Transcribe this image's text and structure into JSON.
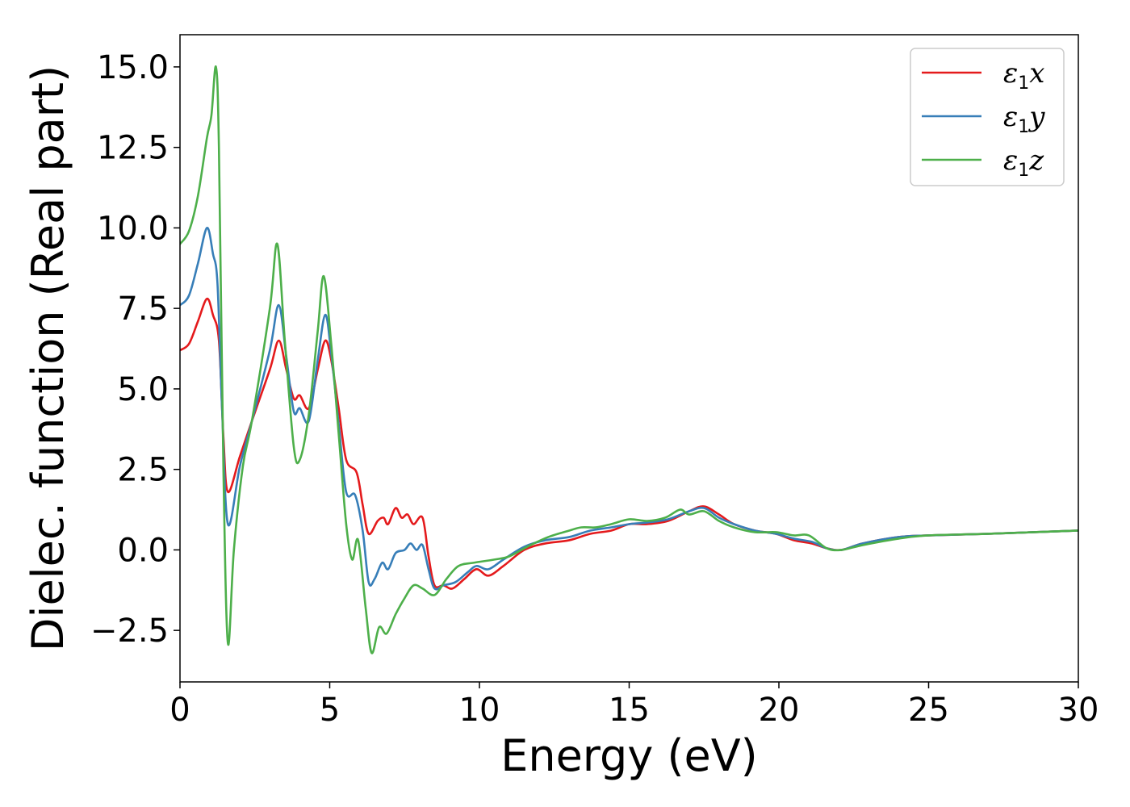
{
  "chart_data": {
    "type": "line",
    "xlabel": "Energy (eV)",
    "ylabel": "Dielec. function (Real part)",
    "xlim": [
      0,
      30
    ],
    "ylim": [
      -4.1,
      16.0
    ],
    "x_ticks": [
      0,
      5,
      10,
      15,
      20,
      25,
      30
    ],
    "x_tick_labels": [
      "0",
      "5",
      "10",
      "15",
      "20",
      "25",
      "30"
    ],
    "y_ticks": [
      -2.5,
      0.0,
      2.5,
      5.0,
      7.5,
      10.0,
      12.5,
      15.0
    ],
    "y_tick_labels": [
      "−2.5",
      "0.0",
      "2.5",
      "5.0",
      "7.5",
      "10.0",
      "12.5",
      "15.0"
    ],
    "grid": false,
    "legend_position": "top-right",
    "series": [
      {
        "name": "ε₁x",
        "legend_symbol": "ε",
        "legend_sub": "1",
        "legend_axis": "x",
        "color": "#e41a1c",
        "points": [
          [
            0,
            6.2
          ],
          [
            0.3,
            6.4
          ],
          [
            0.6,
            7.1
          ],
          [
            0.9,
            7.8
          ],
          [
            1.1,
            7.3
          ],
          [
            1.3,
            6.5
          ],
          [
            1.45,
            3.5
          ],
          [
            1.6,
            1.8
          ],
          [
            2.0,
            2.9
          ],
          [
            2.4,
            4.0
          ],
          [
            3.0,
            5.6
          ],
          [
            3.3,
            6.5
          ],
          [
            3.55,
            5.6
          ],
          [
            3.8,
            4.7
          ],
          [
            4.0,
            4.8
          ],
          [
            4.3,
            4.4
          ],
          [
            4.6,
            5.6
          ],
          [
            4.85,
            6.5
          ],
          [
            5.05,
            5.9
          ],
          [
            5.3,
            4.4
          ],
          [
            5.55,
            2.8
          ],
          [
            5.9,
            2.4
          ],
          [
            6.1,
            1.4
          ],
          [
            6.3,
            0.5
          ],
          [
            6.6,
            0.9
          ],
          [
            6.8,
            1.0
          ],
          [
            6.95,
            0.8
          ],
          [
            7.2,
            1.3
          ],
          [
            7.4,
            1.0
          ],
          [
            7.6,
            1.1
          ],
          [
            7.8,
            0.8
          ],
          [
            8.1,
            1.0
          ],
          [
            8.3,
            -0.2
          ],
          [
            8.5,
            -1.1
          ],
          [
            8.8,
            -1.1
          ],
          [
            9.1,
            -1.2
          ],
          [
            9.5,
            -0.9
          ],
          [
            9.9,
            -0.6
          ],
          [
            10.3,
            -0.8
          ],
          [
            10.8,
            -0.5
          ],
          [
            11.5,
            0.0
          ],
          [
            12.2,
            0.2
          ],
          [
            13.0,
            0.3
          ],
          [
            13.7,
            0.5
          ],
          [
            14.4,
            0.6
          ],
          [
            15.0,
            0.8
          ],
          [
            15.6,
            0.8
          ],
          [
            16.3,
            0.9
          ],
          [
            17.0,
            1.2
          ],
          [
            17.5,
            1.35
          ],
          [
            18.0,
            1.1
          ],
          [
            18.5,
            0.8
          ],
          [
            19.2,
            0.6
          ],
          [
            19.9,
            0.5
          ],
          [
            20.5,
            0.3
          ],
          [
            21.1,
            0.2
          ],
          [
            21.6,
            0.05
          ],
          [
            22.1,
            0.0
          ],
          [
            22.8,
            0.2
          ],
          [
            24.0,
            0.4
          ],
          [
            25.0,
            0.45
          ],
          [
            27.0,
            0.5
          ],
          [
            30.0,
            0.6
          ]
        ]
      },
      {
        "name": "ε₁y",
        "legend_symbol": "ε",
        "legend_sub": "1",
        "legend_axis": "y",
        "color": "#377eb8",
        "points": [
          [
            0,
            7.6
          ],
          [
            0.3,
            7.9
          ],
          [
            0.6,
            8.9
          ],
          [
            0.9,
            10.0
          ],
          [
            1.1,
            9.2
          ],
          [
            1.25,
            8.3
          ],
          [
            1.4,
            4.5
          ],
          [
            1.6,
            0.8
          ],
          [
            2.0,
            2.6
          ],
          [
            2.4,
            4.0
          ],
          [
            3.0,
            6.2
          ],
          [
            3.3,
            7.6
          ],
          [
            3.55,
            6.0
          ],
          [
            3.8,
            4.3
          ],
          [
            4.0,
            4.4
          ],
          [
            4.3,
            4.0
          ],
          [
            4.6,
            5.9
          ],
          [
            4.85,
            7.3
          ],
          [
            5.05,
            6.1
          ],
          [
            5.3,
            3.9
          ],
          [
            5.55,
            1.8
          ],
          [
            5.85,
            1.7
          ],
          [
            6.1,
            0.6
          ],
          [
            6.3,
            -1.0
          ],
          [
            6.5,
            -0.9
          ],
          [
            6.75,
            -0.4
          ],
          [
            6.95,
            -0.6
          ],
          [
            7.2,
            -0.1
          ],
          [
            7.5,
            0.0
          ],
          [
            7.7,
            0.2
          ],
          [
            7.9,
            0.0
          ],
          [
            8.1,
            0.15
          ],
          [
            8.3,
            -0.6
          ],
          [
            8.5,
            -1.2
          ],
          [
            8.8,
            -1.1
          ],
          [
            9.2,
            -1.0
          ],
          [
            9.6,
            -0.7
          ],
          [
            9.9,
            -0.5
          ],
          [
            10.3,
            -0.6
          ],
          [
            10.8,
            -0.3
          ],
          [
            11.5,
            0.1
          ],
          [
            12.2,
            0.3
          ],
          [
            13.0,
            0.4
          ],
          [
            13.7,
            0.6
          ],
          [
            14.4,
            0.7
          ],
          [
            15.0,
            0.8
          ],
          [
            15.6,
            0.85
          ],
          [
            16.3,
            0.95
          ],
          [
            17.0,
            1.2
          ],
          [
            17.5,
            1.3
          ],
          [
            18.0,
            1.0
          ],
          [
            18.5,
            0.8
          ],
          [
            19.2,
            0.6
          ],
          [
            19.9,
            0.5
          ],
          [
            20.5,
            0.35
          ],
          [
            21.1,
            0.25
          ],
          [
            21.6,
            0.05
          ],
          [
            22.1,
            0.0
          ],
          [
            22.8,
            0.2
          ],
          [
            24.0,
            0.4
          ],
          [
            25.0,
            0.45
          ],
          [
            27.0,
            0.5
          ],
          [
            30.0,
            0.6
          ]
        ]
      },
      {
        "name": "ε₁z",
        "legend_symbol": "ε",
        "legend_sub": "1",
        "legend_axis": "z",
        "color": "#4daf4a",
        "points": [
          [
            0,
            9.5
          ],
          [
            0.3,
            9.9
          ],
          [
            0.6,
            11.0
          ],
          [
            0.9,
            12.8
          ],
          [
            1.05,
            13.5
          ],
          [
            1.2,
            15.0
          ],
          [
            1.3,
            12.5
          ],
          [
            1.45,
            2.5
          ],
          [
            1.6,
            -2.9
          ],
          [
            1.8,
            0.0
          ],
          [
            2.1,
            2.6
          ],
          [
            2.4,
            4.0
          ],
          [
            3.0,
            7.5
          ],
          [
            3.25,
            9.5
          ],
          [
            3.5,
            6.5
          ],
          [
            3.8,
            3.2
          ],
          [
            4.0,
            2.8
          ],
          [
            4.3,
            4.2
          ],
          [
            4.6,
            6.8
          ],
          [
            4.8,
            8.5
          ],
          [
            5.05,
            6.4
          ],
          [
            5.3,
            3.6
          ],
          [
            5.55,
            0.8
          ],
          [
            5.75,
            -0.3
          ],
          [
            5.95,
            0.3
          ],
          [
            6.2,
            -1.8
          ],
          [
            6.4,
            -3.2
          ],
          [
            6.65,
            -2.4
          ],
          [
            6.9,
            -2.6
          ],
          [
            7.2,
            -2.0
          ],
          [
            7.5,
            -1.5
          ],
          [
            7.8,
            -1.1
          ],
          [
            8.1,
            -1.2
          ],
          [
            8.5,
            -1.4
          ],
          [
            8.9,
            -0.9
          ],
          [
            9.3,
            -0.5
          ],
          [
            9.8,
            -0.4
          ],
          [
            10.5,
            -0.3
          ],
          [
            11.0,
            -0.2
          ],
          [
            11.6,
            0.1
          ],
          [
            12.3,
            0.4
          ],
          [
            13.0,
            0.6
          ],
          [
            13.4,
            0.7
          ],
          [
            13.9,
            0.7
          ],
          [
            14.4,
            0.8
          ],
          [
            15.0,
            0.95
          ],
          [
            15.6,
            0.9
          ],
          [
            16.2,
            1.0
          ],
          [
            16.7,
            1.25
          ],
          [
            17.0,
            1.1
          ],
          [
            17.5,
            1.2
          ],
          [
            18.0,
            0.9
          ],
          [
            18.5,
            0.7
          ],
          [
            19.2,
            0.55
          ],
          [
            19.9,
            0.55
          ],
          [
            20.5,
            0.45
          ],
          [
            21.0,
            0.45
          ],
          [
            21.6,
            0.05
          ],
          [
            22.1,
            0.0
          ],
          [
            22.8,
            0.15
          ],
          [
            24.0,
            0.35
          ],
          [
            25.0,
            0.45
          ],
          [
            27.0,
            0.5
          ],
          [
            30.0,
            0.6
          ]
        ]
      }
    ]
  }
}
